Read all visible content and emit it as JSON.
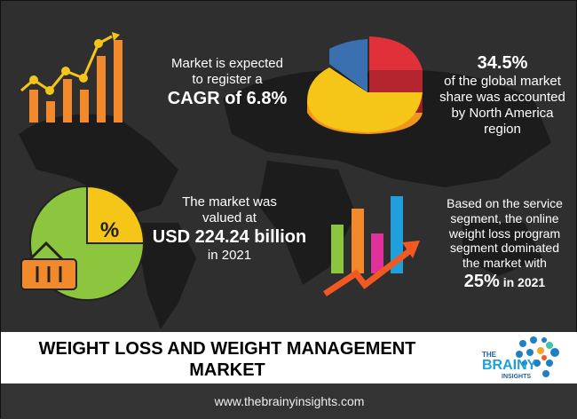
{
  "cagr": {
    "line1": "Market is expected",
    "line2": "to register a",
    "highlight": "CAGR of 6.8%"
  },
  "share": {
    "value": "34.5%",
    "line1": "of the global market",
    "line2": "share was accounted",
    "line3": "by North America",
    "line4": "region"
  },
  "valuation": {
    "line1": "The market was",
    "line2": "valued at",
    "highlight": "USD 224.24 billion",
    "line3": "in 2021"
  },
  "segment": {
    "line1": "Based on the service",
    "line2": "segment, the online",
    "line3": "weight loss program",
    "line4": "segment dominated",
    "line5": "the market with",
    "value": "25%",
    "year": "in 2021"
  },
  "percent_icon_label": "%",
  "title": "WEIGHT LOSS AND WEIGHT MANAGEMENT MARKET",
  "logo": {
    "line1": "THE",
    "line2": "BRAINY",
    "line3": "INSIGHTS"
  },
  "footer": "www.thebrainyinsights.com",
  "colors": {
    "orange": "#f28a2b",
    "yellow": "#f5c518",
    "red": "#e0303a",
    "blue": "#3a6fb0",
    "green": "#8cc63f",
    "brand_blue": "#1fa0dc"
  }
}
